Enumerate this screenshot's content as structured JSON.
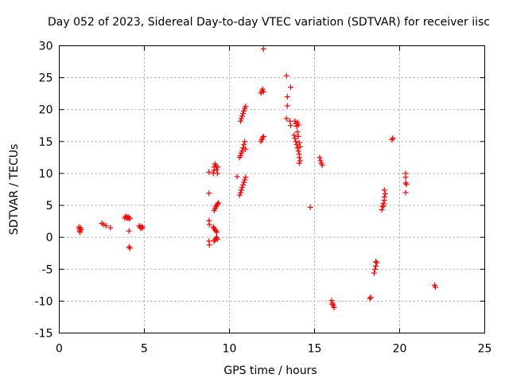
{
  "chart_data": {
    "type": "scatter",
    "title": "Day 052 of 2023, Sidereal Day-to-day VTEC variation (SDTVAR) for receiver iisc",
    "xlabel": "GPS time / hours",
    "ylabel": "SDTVAR / TECUs",
    "xlim": [
      0,
      25
    ],
    "ylim": [
      -15,
      30
    ],
    "xticks": [
      "0",
      "5",
      "10",
      "15",
      "20",
      "25"
    ],
    "yticks": [
      "-15",
      "-10",
      "-5",
      "0",
      "5",
      "10",
      "15",
      "20",
      "25",
      "30"
    ],
    "grid": true,
    "marker": "plus",
    "color": "#ff0000",
    "points": [
      [
        1.15,
        1.6
      ],
      [
        1.18,
        1.3
      ],
      [
        1.2,
        1.0
      ],
      [
        1.22,
        0.8
      ],
      [
        1.25,
        1.5
      ],
      [
        1.28,
        1.2
      ],
      [
        2.5,
        2.2
      ],
      [
        2.6,
        2.0
      ],
      [
        2.75,
        1.8
      ],
      [
        3.0,
        1.5
      ],
      [
        3.85,
        3.0
      ],
      [
        3.9,
        3.3
      ],
      [
        3.95,
        3.1
      ],
      [
        4.0,
        3.0
      ],
      [
        4.05,
        3.2
      ],
      [
        4.1,
        2.9
      ],
      [
        4.15,
        3.0
      ],
      [
        4.1,
        1.0
      ],
      [
        4.1,
        -1.5
      ],
      [
        4.15,
        -1.7
      ],
      [
        4.7,
        1.8
      ],
      [
        4.75,
        1.6
      ],
      [
        4.8,
        1.4
      ],
      [
        4.85,
        1.7
      ],
      [
        4.9,
        1.5
      ],
      [
        8.8,
        10.2
      ],
      [
        8.8,
        6.9
      ],
      [
        8.8,
        2.6
      ],
      [
        8.82,
        2.0
      ],
      [
        8.8,
        -0.6
      ],
      [
        8.82,
        -1.2
      ],
      [
        9.05,
        10.0
      ],
      [
        9.1,
        10.5
      ],
      [
        9.1,
        11.0
      ],
      [
        9.15,
        11.5
      ],
      [
        9.2,
        11.2
      ],
      [
        9.25,
        10.6
      ],
      [
        9.3,
        11.0
      ],
      [
        9.3,
        10.0
      ],
      [
        9.1,
        4.2
      ],
      [
        9.15,
        4.5
      ],
      [
        9.2,
        4.8
      ],
      [
        9.25,
        5.0
      ],
      [
        9.3,
        5.2
      ],
      [
        9.35,
        5.4
      ],
      [
        9.05,
        1.6
      ],
      [
        9.1,
        1.4
      ],
      [
        9.15,
        1.2
      ],
      [
        9.2,
        1.0
      ],
      [
        9.25,
        0.8
      ],
      [
        9.1,
        -0.6
      ],
      [
        9.15,
        -0.4
      ],
      [
        9.2,
        -0.2
      ],
      [
        9.25,
        0.0
      ],
      [
        9.3,
        -0.3
      ],
      [
        10.45,
        9.5
      ],
      [
        10.6,
        12.5
      ],
      [
        10.65,
        12.8
      ],
      [
        10.7,
        13.2
      ],
      [
        10.75,
        13.5
      ],
      [
        10.8,
        14.0
      ],
      [
        10.85,
        14.5
      ],
      [
        10.9,
        15.0
      ],
      [
        10.95,
        13.8
      ],
      [
        10.65,
        18.2
      ],
      [
        10.7,
        18.6
      ],
      [
        10.75,
        19.0
      ],
      [
        10.8,
        19.4
      ],
      [
        10.85,
        19.8
      ],
      [
        10.9,
        20.2
      ],
      [
        10.95,
        20.5
      ],
      [
        10.6,
        6.6
      ],
      [
        10.65,
        7.0
      ],
      [
        10.7,
        7.4
      ],
      [
        10.75,
        7.8
      ],
      [
        10.8,
        8.2
      ],
      [
        10.85,
        8.6
      ],
      [
        10.9,
        9.0
      ],
      [
        10.95,
        9.4
      ],
      [
        11.85,
        22.6
      ],
      [
        11.9,
        22.9
      ],
      [
        11.95,
        23.2
      ],
      [
        12.0,
        22.8
      ],
      [
        11.85,
        15.0
      ],
      [
        11.9,
        15.3
      ],
      [
        11.95,
        15.6
      ],
      [
        12.0,
        15.8
      ],
      [
        12.0,
        29.5
      ],
      [
        13.35,
        25.3
      ],
      [
        13.4,
        22.0
      ],
      [
        13.4,
        20.6
      ],
      [
        13.35,
        18.6
      ],
      [
        13.55,
        18.2
      ],
      [
        13.6,
        23.5
      ],
      [
        13.6,
        17.5
      ],
      [
        13.85,
        18.2
      ],
      [
        13.9,
        17.8
      ],
      [
        13.95,
        17.4
      ],
      [
        14.0,
        18.0
      ],
      [
        14.05,
        17.6
      ],
      [
        13.8,
        16.0
      ],
      [
        13.85,
        15.5
      ],
      [
        13.9,
        15.0
      ],
      [
        13.95,
        14.5
      ],
      [
        14.0,
        14.0
      ],
      [
        14.05,
        13.5
      ],
      [
        14.1,
        13.0
      ],
      [
        14.1,
        12.5
      ],
      [
        14.15,
        12.0
      ],
      [
        14.1,
        11.6
      ],
      [
        14.0,
        16.5
      ],
      [
        14.05,
        15.8
      ],
      [
        14.1,
        14.8
      ],
      [
        14.15,
        14.2
      ],
      [
        14.75,
        4.7
      ],
      [
        15.3,
        12.5
      ],
      [
        15.35,
        12.0
      ],
      [
        15.4,
        11.6
      ],
      [
        15.45,
        11.3
      ],
      [
        16.0,
        -9.9
      ],
      [
        16.05,
        -10.3
      ],
      [
        16.1,
        -10.7
      ],
      [
        16.15,
        -11.0
      ],
      [
        16.05,
        -10.5
      ],
      [
        18.25,
        -9.6
      ],
      [
        18.3,
        -9.4
      ],
      [
        18.5,
        -5.6
      ],
      [
        18.55,
        -5.0
      ],
      [
        18.6,
        -4.5
      ],
      [
        18.65,
        -4.0
      ],
      [
        18.6,
        -3.8
      ],
      [
        18.95,
        4.3
      ],
      [
        19.0,
        4.8
      ],
      [
        19.05,
        5.3
      ],
      [
        19.1,
        5.8
      ],
      [
        19.1,
        6.3
      ],
      [
        19.15,
        6.8
      ],
      [
        19.1,
        7.4
      ],
      [
        19.05,
        5.0
      ],
      [
        19.55,
        15.3
      ],
      [
        19.6,
        15.5
      ],
      [
        20.35,
        10.0
      ],
      [
        20.35,
        9.4
      ],
      [
        20.35,
        8.5
      ],
      [
        20.4,
        8.3
      ],
      [
        20.35,
        7.0
      ],
      [
        22.05,
        -7.5
      ],
      [
        22.1,
        -7.8
      ]
    ]
  }
}
